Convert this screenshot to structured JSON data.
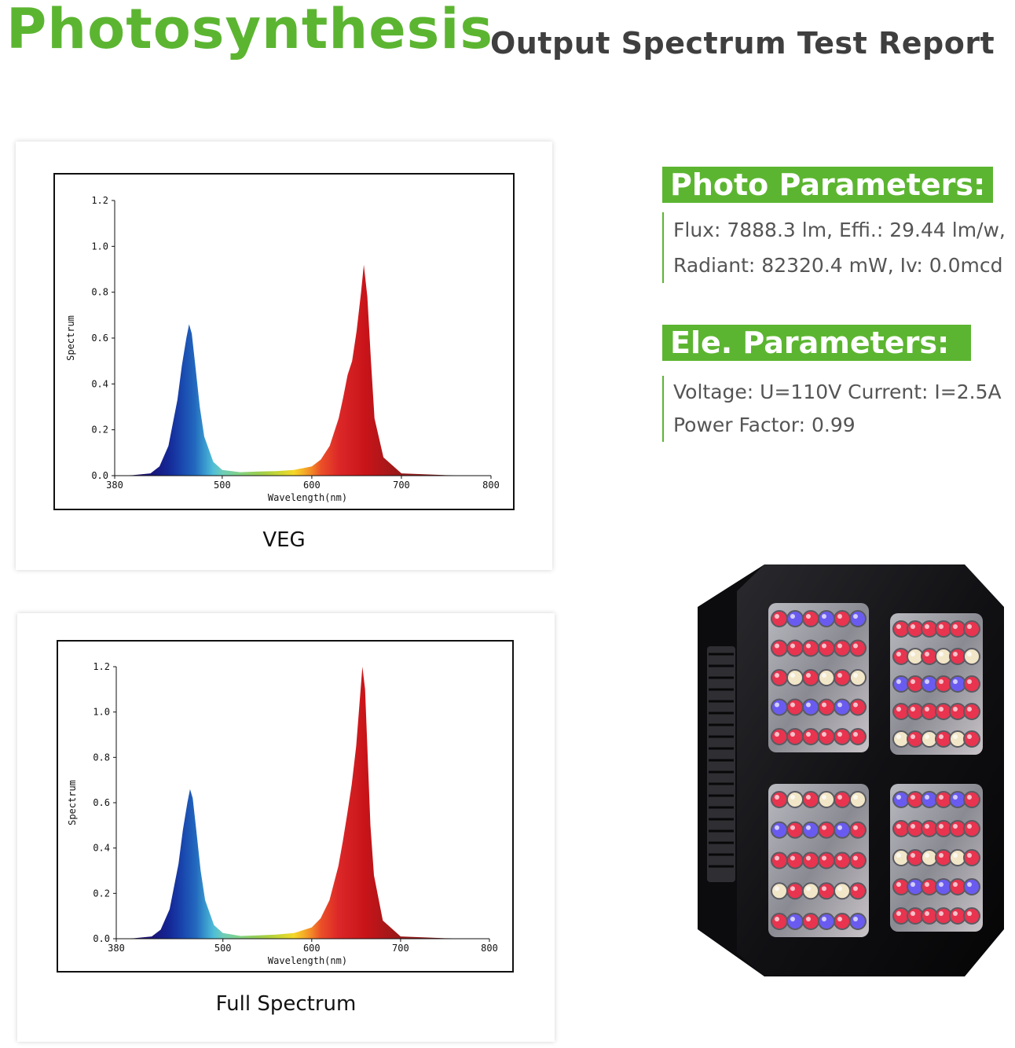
{
  "header": {
    "title": "Photosynthesis",
    "subtitle": "Output Spectrum Test Report"
  },
  "colors": {
    "brand_green": "#5cb531",
    "heading_gray": "#3f3f3f",
    "text_gray": "#555555"
  },
  "photo_parameters": {
    "heading": "Photo Parameters:",
    "line1": "Flux: 7888.3 lm, Effi.: 29.44 lm/w,",
    "line2": "Radiant: 82320.4 mW, Iv: 0.0mcd"
  },
  "ele_parameters": {
    "heading": "Ele. Parameters:",
    "line1": "Voltage: U=110V  Current: I=2.5A",
    "line2": "Power Factor: 0.99"
  },
  "chart_data": [
    {
      "type": "area",
      "caption": "VEG",
      "xlabel": "Wavelength(nm)",
      "ylabel": "Spectrum",
      "xlim": [
        380,
        800
      ],
      "ylim": [
        0,
        1.2
      ],
      "x_ticks": [
        380,
        500,
        600,
        700,
        800
      ],
      "y_ticks": [
        "0.0",
        "0.2",
        "0.4",
        "0.6",
        "0.8",
        "1.0",
        "1.2"
      ],
      "grid": false,
      "x": [
        380,
        400,
        420,
        430,
        440,
        450,
        455,
        460,
        463,
        466,
        470,
        475,
        480,
        490,
        500,
        520,
        540,
        560,
        580,
        600,
        610,
        620,
        630,
        635,
        640,
        645,
        650,
        655,
        658,
        662,
        666,
        670,
        680,
        700,
        750,
        800
      ],
      "values": [
        0,
        0.002,
        0.01,
        0.04,
        0.13,
        0.33,
        0.48,
        0.6,
        0.66,
        0.62,
        0.48,
        0.3,
        0.17,
        0.06,
        0.025,
        0.015,
        0.018,
        0.02,
        0.025,
        0.04,
        0.07,
        0.13,
        0.25,
        0.34,
        0.44,
        0.5,
        0.63,
        0.8,
        0.92,
        0.78,
        0.5,
        0.25,
        0.08,
        0.01,
        0.002,
        0
      ]
    },
    {
      "type": "area",
      "caption": "Full Spectrum",
      "xlabel": "Wavelength(nm)",
      "ylabel": "Spectrum",
      "xlim": [
        380,
        800
      ],
      "ylim": [
        0,
        1.2
      ],
      "x_ticks": [
        380,
        500,
        600,
        700,
        800
      ],
      "y_ticks": [
        "0.0",
        "0.2",
        "0.4",
        "0.6",
        "0.8",
        "1.0",
        "1.2"
      ],
      "grid": false,
      "x": [
        380,
        400,
        420,
        430,
        440,
        450,
        455,
        460,
        463,
        466,
        470,
        475,
        480,
        490,
        500,
        520,
        540,
        560,
        580,
        600,
        610,
        620,
        630,
        635,
        640,
        645,
        650,
        654,
        657,
        660,
        663,
        666,
        670,
        680,
        700,
        750,
        800
      ],
      "values": [
        0,
        0.002,
        0.01,
        0.04,
        0.13,
        0.33,
        0.48,
        0.6,
        0.66,
        0.62,
        0.48,
        0.3,
        0.17,
        0.06,
        0.025,
        0.012,
        0.015,
        0.018,
        0.025,
        0.05,
        0.09,
        0.17,
        0.32,
        0.43,
        0.55,
        0.68,
        0.85,
        1.05,
        1.2,
        1.1,
        0.8,
        0.5,
        0.28,
        0.08,
        0.01,
        0.002,
        0
      ]
    }
  ]
}
